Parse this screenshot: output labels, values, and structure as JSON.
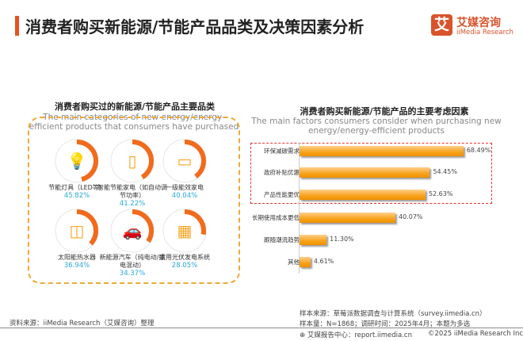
{
  "header": {
    "title": "消费者购买新能源/节能产品品类及决策因素分析",
    "accent_color": "#e8501e"
  },
  "logo": {
    "mark": "艾",
    "name_cn": "艾媒咨询",
    "name_en": "iiMedia Research",
    "color": "#d9532b"
  },
  "left_panel": {
    "title": "消费者购买过的新能源/节能产品主要品类",
    "subtitle": "The main categories of new energy/energy-efficient products that consumers have purchased",
    "items": [
      {
        "icon": "lightbulb-icon",
        "label": "节能灯具（LED等）",
        "percent": "45.82%",
        "value": 45.82
      },
      {
        "icon": "refrigerator-icon",
        "label": "智能节能家电（如自动调节功率）",
        "percent": "41.22%",
        "value": 41.22
      },
      {
        "icon": "air-conditioner-icon",
        "label": "一级能效家电",
        "percent": "40.04%",
        "value": 40.04
      },
      {
        "icon": "water-heater-icon",
        "label": "太阳能热水器",
        "percent": "36.94%",
        "value": 36.94
      },
      {
        "icon": "electric-car-icon",
        "label": "新能源汽车（纯电动/插电混动）",
        "percent": "34.37%",
        "value": 34.37
      },
      {
        "icon": "solar-panel-icon",
        "label": "家用光伏发电系统",
        "percent": "28.05%",
        "value": 28.05
      }
    ],
    "ring_color": "#f26a1b",
    "value_color": "#2aa7d8"
  },
  "chart_data": {
    "type": "bar",
    "orientation": "horizontal",
    "title": "消费者购买新能源/节能产品的主要考虑因素",
    "subtitle": "The main factors consumers consider when purchasing new energy/energy-efficient products",
    "categories": [
      "环保减碳需求",
      "政府补贴优惠",
      "产品性能更优",
      "长期使用成本更低",
      "跟随潮流趋势",
      "其他"
    ],
    "values": [
      68.49,
      54.45,
      52.63,
      40.07,
      11.3,
      4.61
    ],
    "labels": [
      "68.49%",
      "54.45%",
      "52.63%",
      "40.07%",
      "11.30%",
      "4.61%"
    ],
    "highlighted": [
      "环保减碳需求",
      "政府补贴优惠",
      "产品性能更优"
    ],
    "bar_color": "#f7a21b",
    "grid": false
  },
  "footer": {
    "source": "资料来源：iiMedia Research（艾媒咨询）整理",
    "sample_source": "样本来源：草莓派数据调查与计算系统（survey.iimedia.cn）",
    "sample_size": "样本量：N=1868；调研时间：2025年4月；本题为多选",
    "report_center": "艾媒报告中心：report.iimedia.cn",
    "copyright": "©2025  iiMedia Research  Inc"
  }
}
